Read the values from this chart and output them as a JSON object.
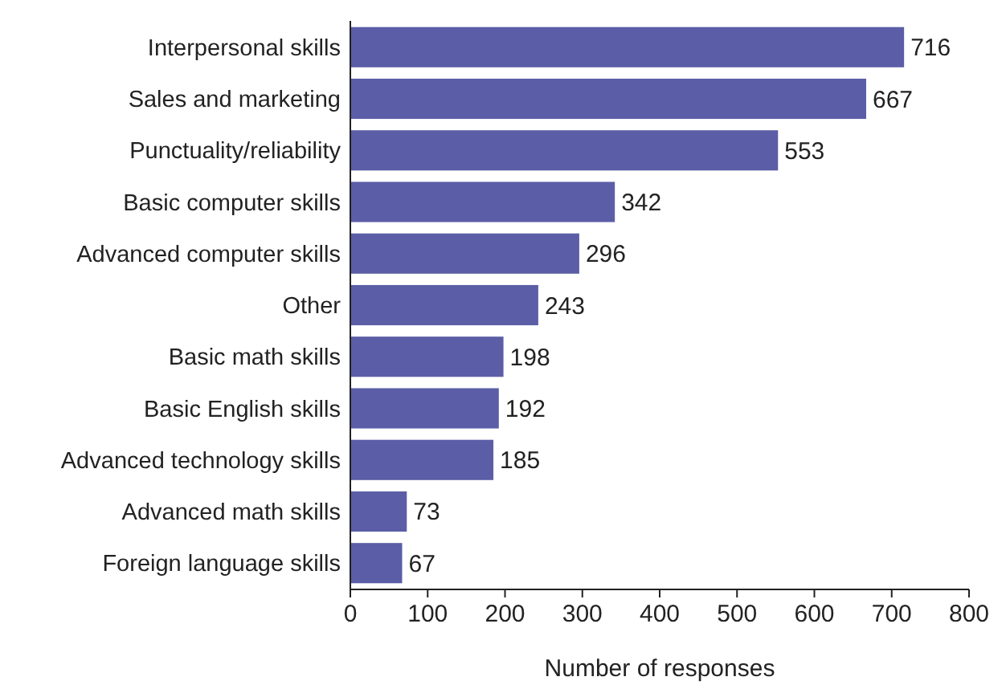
{
  "chart_data": {
    "type": "bar",
    "orientation": "horizontal",
    "xlabel": "Number of responses",
    "categories": [
      "Interpersonal skills",
      "Sales and marketing",
      "Punctuality/reliability",
      "Basic computer skills",
      "Advanced computer skills",
      "Other",
      "Basic math skills",
      "Basic English skills",
      "Advanced technology skills",
      "Advanced math skills",
      "Foreign language skills"
    ],
    "values": [
      716,
      667,
      553,
      342,
      296,
      243,
      198,
      192,
      185,
      73,
      67
    ],
    "color": "#5b5ea6",
    "data_labels": true,
    "grid": false,
    "xlim": [
      0,
      800
    ],
    "xticks": [
      0,
      100,
      200,
      300,
      400,
      500,
      600,
      700,
      800
    ]
  }
}
